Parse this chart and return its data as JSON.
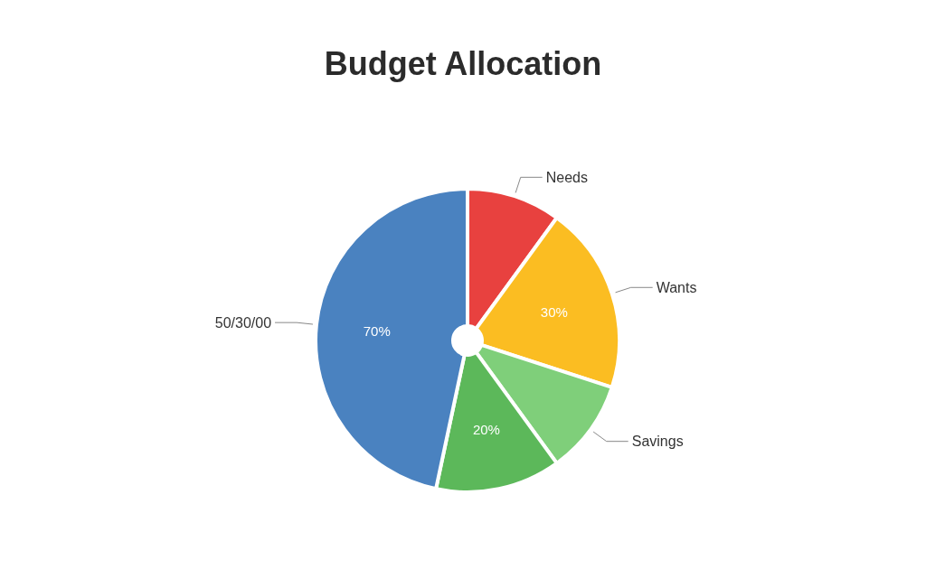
{
  "chart_data": {
    "type": "pie",
    "title": "Budget Allocation",
    "categories": [
      "Needs",
      "Wants",
      "Savings",
      null,
      "50/30/00"
    ],
    "values": [
      15,
      30,
      15,
      20,
      70
    ],
    "colors": [
      "#e8413f",
      "#fbbd22",
      "#7fcf7a",
      "#5cb85a",
      "#4a82c0"
    ],
    "value_labels": [
      null,
      "30%",
      null,
      "20%",
      "70%"
    ],
    "legend": false
  }
}
